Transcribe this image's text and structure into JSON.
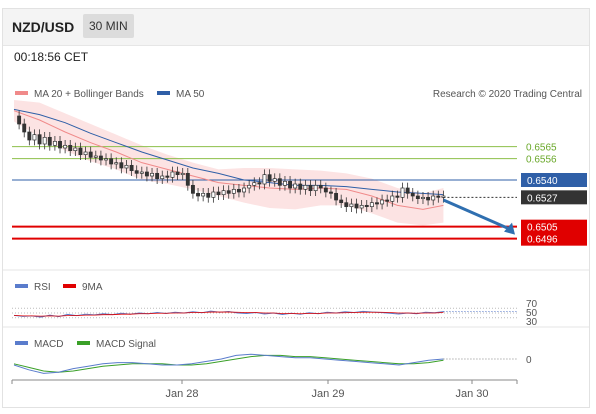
{
  "header": {
    "symbol": "NZD/USD",
    "timeframe": "30 MIN"
  },
  "clock": "00:18:56 CET",
  "price_panel": {
    "legend": [
      {
        "label": "MA 20 + Bollinger Bands",
        "color": "#f08a8a"
      },
      {
        "label": "MA 50",
        "color": "#2f5fa7"
      }
    ],
    "credit": "Research © 2020 Trading Central"
  },
  "rsi_panel": {
    "legend": [
      {
        "label": "RSI",
        "color": "#5a7ccc"
      },
      {
        "label": "9MA",
        "color": "#e00000"
      }
    ],
    "levels": [
      "70",
      "50",
      "30"
    ]
  },
  "macd_panel": {
    "legend": [
      {
        "label": "MACD",
        "color": "#5a7ccc"
      },
      {
        "label": "MACD Signal",
        "color": "#3aa028"
      }
    ],
    "zero_label": "0"
  },
  "colors": {
    "support": "#e00000",
    "resistance": "#8dbf4a",
    "pivot": "#2f5fa7",
    "current": "#333333",
    "arrow": "#2f6fb0"
  },
  "chart_data": {
    "type": "line",
    "title": "NZD/USD",
    "xlabel": "",
    "ylabel": "",
    "x_ticks": [
      "Jan 28",
      "Jan 29",
      "Jan 30"
    ],
    "ylim": [
      0.648,
      0.66
    ],
    "series": [
      {
        "name": "MA 20 + Bollinger Bands",
        "kind": "ma20",
        "x": [
          0,
          5,
          10,
          15,
          20,
          25,
          30,
          35,
          40,
          45,
          50,
          55,
          60,
          65,
          70,
          75,
          80,
          84
        ],
        "values": [
          0.6592,
          0.6585,
          0.6576,
          0.6568,
          0.6561,
          0.6553,
          0.6548,
          0.6543,
          0.6538,
          0.6536,
          0.6534,
          0.6533,
          0.6534,
          0.6533,
          0.6528,
          0.6521,
          0.6518,
          0.6521
        ]
      },
      {
        "name": "MA 50",
        "kind": "ma50",
        "x": [
          0,
          5,
          10,
          15,
          20,
          25,
          30,
          35,
          40,
          45,
          50,
          55,
          60,
          65,
          70,
          75,
          80,
          84
        ],
        "values": [
          0.6593,
          0.6589,
          0.6583,
          0.6575,
          0.6568,
          0.6561,
          0.6555,
          0.6549,
          0.6545,
          0.654,
          0.6538,
          0.6536,
          0.6536,
          0.6535,
          0.6533,
          0.6531,
          0.653,
          0.6529
        ]
      }
    ],
    "candles": {
      "x_start": 0,
      "step": 1,
      "close": [
        0.6588,
        0.6582,
        0.6576,
        0.657,
        0.6574,
        0.6567,
        0.6572,
        0.6566,
        0.6569,
        0.6564,
        0.6566,
        0.6562,
        0.6564,
        0.6559,
        0.6561,
        0.6557,
        0.6558,
        0.6555,
        0.6556,
        0.6552,
        0.6553,
        0.6549,
        0.6551,
        0.6547,
        0.6545,
        0.6546,
        0.6543,
        0.6545,
        0.6541,
        0.6543,
        0.6542,
        0.6546,
        0.6544,
        0.6545,
        0.6536,
        0.653,
        0.6528,
        0.653,
        0.6527,
        0.6531,
        0.6529,
        0.6532,
        0.653,
        0.6533,
        0.6531,
        0.6534,
        0.6536,
        0.6538,
        0.6537,
        0.6544,
        0.6539,
        0.6541,
        0.6536,
        0.6539,
        0.6534,
        0.6537,
        0.6533,
        0.6536,
        0.6532,
        0.6536,
        0.6534,
        0.6531,
        0.653,
        0.6525,
        0.6523,
        0.652,
        0.6522,
        0.6519,
        0.6521,
        0.652,
        0.6523,
        0.6522,
        0.6525,
        0.6524,
        0.6528,
        0.6527,
        0.6534,
        0.653,
        0.6528,
        0.6526,
        0.6527,
        0.6525,
        0.6528,
        0.6527,
        0.6528
      ]
    },
    "bollinger_upper": [
      0.66,
      0.6598,
      0.659,
      0.6582,
      0.6574,
      0.6566,
      0.6559,
      0.6553,
      0.6548,
      0.6549,
      0.6549,
      0.6548,
      0.6547,
      0.6545,
      0.6541,
      0.6534,
      0.653,
      0.6534
    ],
    "bollinger_lower": [
      0.6584,
      0.6572,
      0.6562,
      0.6554,
      0.6548,
      0.654,
      0.6537,
      0.6533,
      0.6528,
      0.6523,
      0.6519,
      0.6518,
      0.6521,
      0.6521,
      0.6515,
      0.6508,
      0.6506,
      0.6508
    ],
    "levels": [
      {
        "value": 0.6565,
        "label": "0.6565",
        "kind": "resistance"
      },
      {
        "value": 0.6556,
        "label": "0.6556",
        "kind": "resistance"
      },
      {
        "value": 0.654,
        "label": "0.6540",
        "kind": "pivot"
      },
      {
        "value": 0.6527,
        "label": "0.6527",
        "kind": "current"
      },
      {
        "value": 0.6505,
        "label": "0.6505",
        "kind": "support"
      },
      {
        "value": 0.6496,
        "label": "0.6496",
        "kind": "support"
      }
    ],
    "arrow": {
      "from": [
        84,
        0.6525
      ],
      "to": [
        98,
        0.6499
      ]
    },
    "rsi": {
      "ylim": [
        0,
        100
      ],
      "values": [
        40,
        36,
        38,
        33,
        41,
        35,
        44,
        39,
        45,
        42,
        47,
        43,
        49,
        45,
        50,
        47,
        52,
        48,
        53,
        50,
        55,
        51,
        58,
        53,
        56,
        50,
        48,
        52,
        46,
        50,
        44,
        49,
        45,
        51,
        47,
        53,
        50,
        55,
        52,
        57,
        54,
        52,
        49,
        46,
        50,
        47,
        53,
        51,
        56
      ]
    },
    "rsi_ma": {
      "values": [
        40,
        38,
        38,
        37,
        38,
        37,
        39,
        39,
        41,
        41,
        43,
        43,
        45,
        45,
        47,
        47,
        49,
        49,
        50,
        50,
        52,
        52,
        54,
        54,
        54,
        53,
        52,
        52,
        50,
        50,
        48,
        48,
        47,
        48,
        48,
        50,
        50,
        51,
        52,
        53,
        53,
        53,
        52,
        50,
        50,
        49,
        50,
        50,
        52
      ]
    },
    "macd": {
      "values": [
        -5,
        -9,
        -12,
        -11,
        -8,
        -6,
        -4,
        -3,
        -3,
        -4,
        -5,
        -5,
        -4,
        -2,
        0,
        3,
        4,
        3,
        2,
        1,
        1,
        0,
        -1,
        -2,
        -3,
        -4,
        -5,
        -3,
        -1,
        0
      ]
    },
    "macd_signal": {
      "values": [
        -4,
        -7,
        -10,
        -11,
        -10,
        -8,
        -6,
        -5,
        -4,
        -4,
        -4,
        -5,
        -5,
        -4,
        -2,
        0,
        2,
        3,
        3,
        2,
        2,
        1,
        0,
        -1,
        -2,
        -3,
        -4,
        -4,
        -3,
        -1
      ]
    }
  }
}
